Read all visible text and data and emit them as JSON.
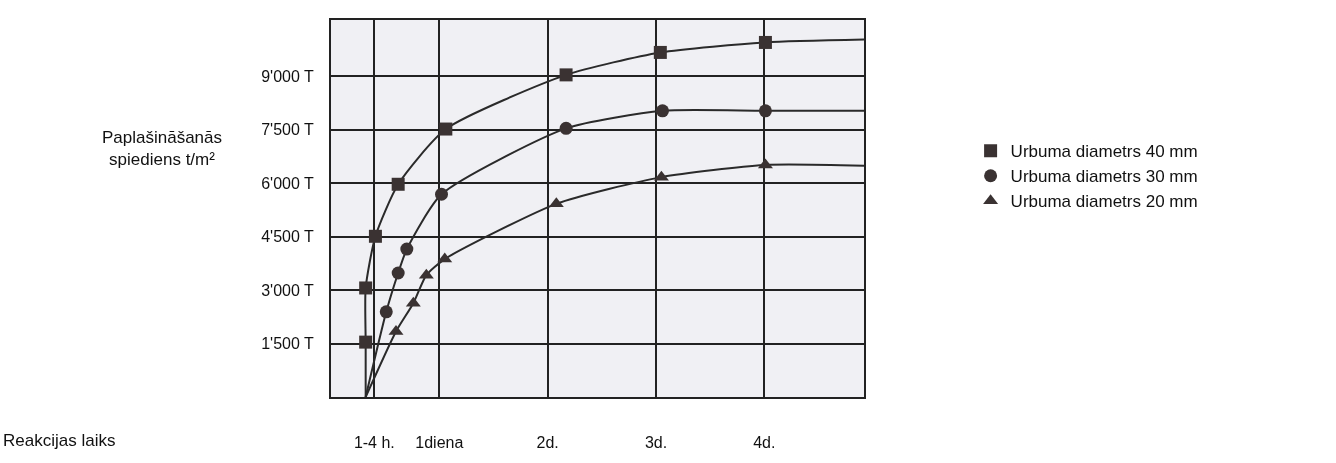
{
  "chart_data": {
    "type": "scatter",
    "annotations": [
      "Reakcijas laiks"
    ],
    "ylabel": "Paplašināšanās\nspiediens t/m²",
    "xlim": [
      0,
      4.92
    ],
    "xticks": [
      {
        "value": 0.4,
        "label": "1-4 h."
      },
      {
        "value": 1,
        "label": "1diena"
      },
      {
        "value": 2,
        "label": "2d."
      },
      {
        "value": 3,
        "label": "3d."
      },
      {
        "value": 4,
        "label": "4d."
      }
    ],
    "ylim": [
      0,
      10580
    ],
    "yticks": [
      {
        "value": 1500,
        "label": "1'500 T"
      },
      {
        "value": 3000,
        "label": "3'000 T"
      },
      {
        "value": 4500,
        "label": "4'500 T"
      },
      {
        "value": 6000,
        "label": "6'000 T"
      },
      {
        "value": 7500,
        "label": "7'500 T"
      },
      {
        "value": 9000,
        "label": "9'000 T"
      }
    ],
    "grid": true,
    "legend": "right",
    "series": [
      {
        "name": "Urbuma diametrs 40 mm",
        "color": "#3a3232",
        "marker": "square",
        "x": [
          0.32,
          0.32,
          0.41,
          0.62,
          1.06,
          2.17,
          3.04,
          4.01
        ],
        "values": [
          1540,
          3060,
          4510,
          5970,
          7520,
          9040,
          9670,
          9950
        ]
      },
      {
        "name": "Urbuma diametrs 30 mm",
        "color": "#3a3232",
        "marker": "circle",
        "x": [
          0.51,
          0.62,
          0.7,
          1.02,
          2.17,
          3.06,
          4.01
        ],
        "values": [
          2390,
          3480,
          4150,
          5690,
          7540,
          8030,
          8030
        ]
      },
      {
        "name": "Urbuma diametrs 20 mm",
        "color": "#3a3232",
        "marker": "triangle",
        "x": [
          0.6,
          0.76,
          0.88,
          1.05,
          2.08,
          3.05,
          4.01
        ],
        "values": [
          1840,
          2630,
          3420,
          3870,
          5420,
          6170,
          6510
        ]
      },
      {
        "type": "line",
        "color": "#2a2a2a",
        "line_style": "solid",
        "x": [
          0.32,
          0.32,
          0.32,
          0.41,
          0.62,
          1.06,
          2.17,
          3.04,
          4.01,
          4.92
        ],
        "values": [
          0,
          1540,
          3060,
          4510,
          5970,
          7520,
          9040,
          9670,
          9950,
          10030
        ]
      },
      {
        "type": "line",
        "color": "#2a2a2a",
        "line_style": "solid",
        "x": [
          0.32,
          0.51,
          0.62,
          0.7,
          1.02,
          2.17,
          3.06,
          4.01,
          4.92
        ],
        "values": [
          0,
          2390,
          3480,
          4150,
          5690,
          7540,
          8030,
          8030,
          8030
        ]
      },
      {
        "type": "line",
        "color": "#2a2a2a",
        "line_style": "solid",
        "x": [
          0.32,
          0.6,
          0.76,
          0.88,
          1.05,
          2.08,
          3.05,
          4.01,
          4.92
        ],
        "values": [
          0,
          1840,
          2630,
          3420,
          3870,
          5420,
          6170,
          6510,
          6490
        ]
      }
    ]
  }
}
